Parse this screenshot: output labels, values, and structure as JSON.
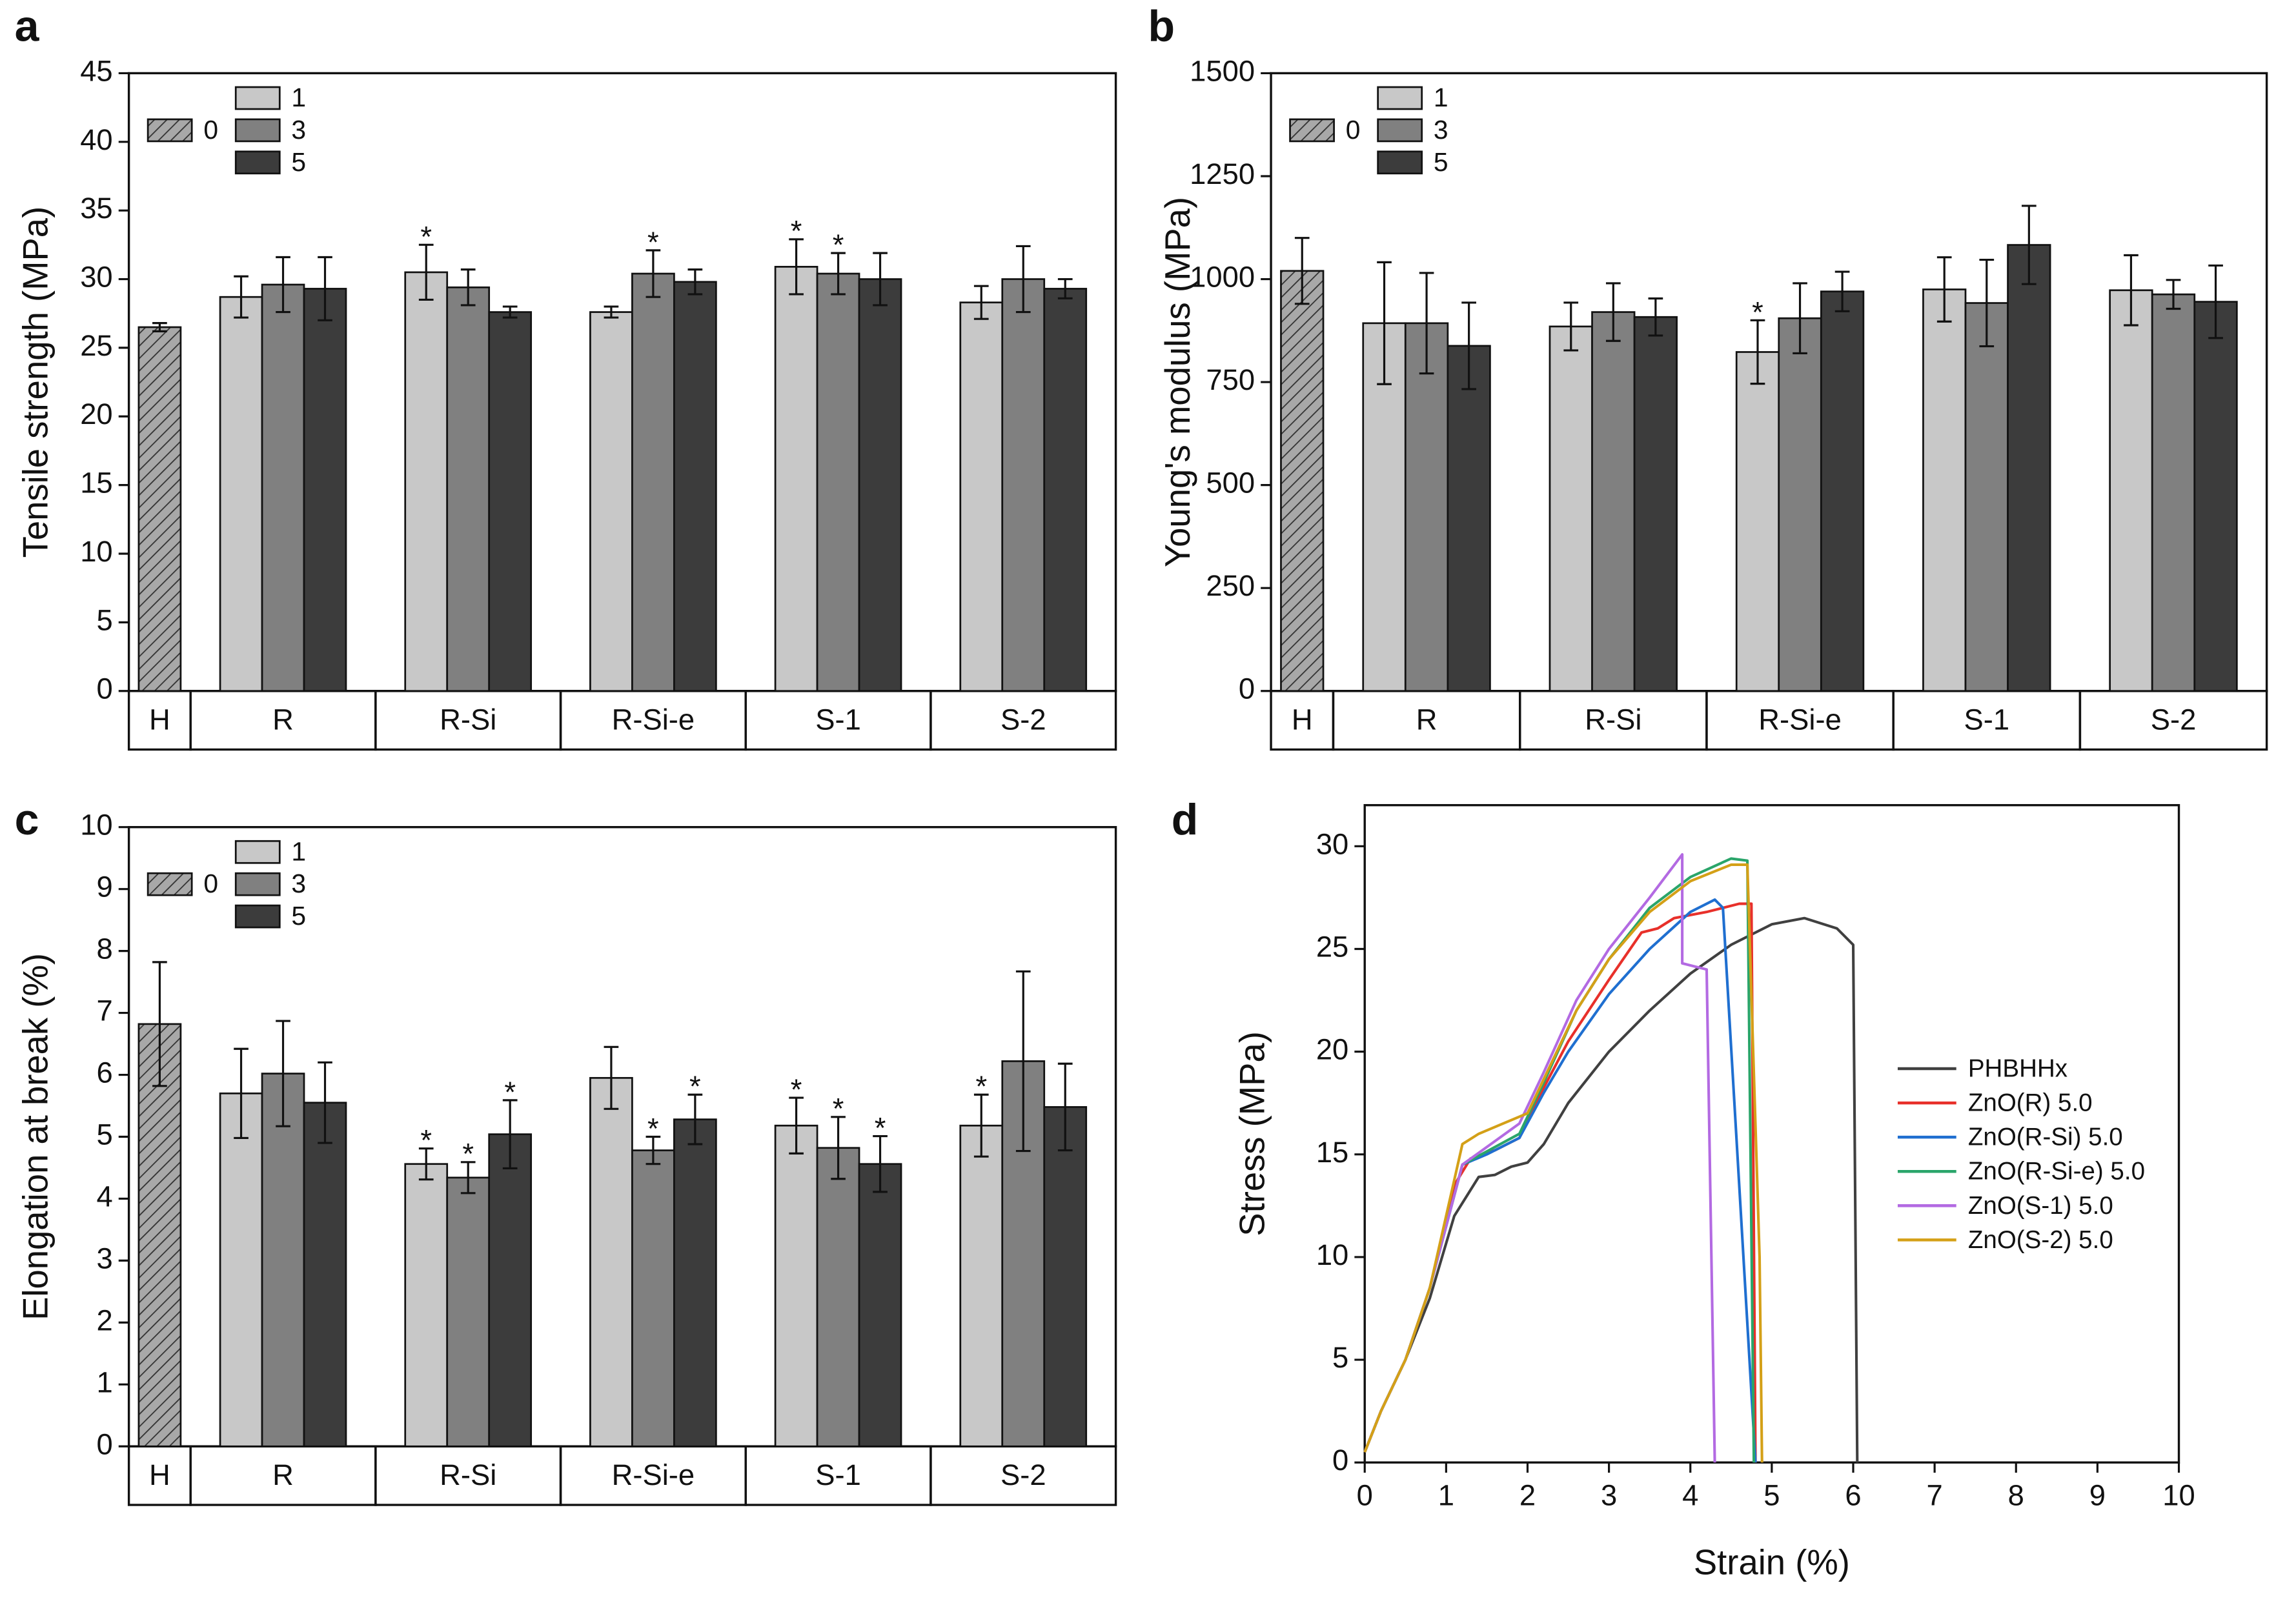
{
  "chart_data": [
    {
      "type": "bar",
      "panel": "a",
      "y_label": "Tensile strength (MPa)",
      "categories": [
        "H",
        "R",
        "R-Si",
        "R-Si-e",
        "S-1",
        "S-2"
      ],
      "ylim": [
        0,
        45
      ],
      "yticks": [
        0,
        5,
        10,
        15,
        20,
        25,
        30,
        35,
        40,
        45
      ],
      "series": [
        {
          "name": "0",
          "color": "#a8a8a8",
          "hatch": true,
          "values": [
            26.5,
            null,
            null,
            null,
            null,
            null
          ],
          "errors": [
            0.3,
            null,
            null,
            null,
            null,
            null
          ],
          "labels": [
            null,
            null,
            null,
            null,
            null,
            null
          ]
        },
        {
          "name": "1",
          "color": "#c8c8c8",
          "values": [
            null,
            28.7,
            30.5,
            27.6,
            30.9,
            28.3
          ],
          "errors": [
            null,
            1.5,
            2.0,
            0.4,
            2.0,
            1.2
          ],
          "labels": [
            null,
            null,
            "*",
            null,
            "*",
            null
          ]
        },
        {
          "name": "3",
          "color": "#808080",
          "values": [
            null,
            29.6,
            29.4,
            30.4,
            30.4,
            30.0
          ],
          "errors": [
            null,
            2.0,
            1.3,
            1.7,
            1.5,
            2.4
          ],
          "labels": [
            null,
            null,
            null,
            "*",
            "*",
            null
          ]
        },
        {
          "name": "5",
          "color": "#3c3c3c",
          "values": [
            null,
            29.3,
            27.6,
            29.8,
            30.0,
            29.3
          ],
          "errors": [
            null,
            2.3,
            0.4,
            0.9,
            1.9,
            0.7
          ],
          "labels": [
            null,
            null,
            null,
            null,
            null,
            null
          ]
        }
      ]
    },
    {
      "type": "bar",
      "panel": "b",
      "y_label": "Young's modulus (MPa)",
      "categories": [
        "H",
        "R",
        "R-Si",
        "R-Si-e",
        "S-1",
        "S-2"
      ],
      "ylim": [
        0,
        1500
      ],
      "yticks": [
        0,
        250,
        500,
        750,
        1000,
        1250,
        1500
      ],
      "series": [
        {
          "name": "0",
          "color": "#a8a8a8",
          "hatch": true,
          "values": [
            1020,
            null,
            null,
            null,
            null,
            null
          ],
          "errors": [
            80,
            null,
            null,
            null,
            null,
            null
          ],
          "labels": [
            null,
            null,
            null,
            null,
            null,
            null
          ]
        },
        {
          "name": "1",
          "color": "#c8c8c8",
          "values": [
            null,
            893,
            885,
            823,
            975,
            973
          ],
          "errors": [
            null,
            148,
            58,
            77,
            78,
            85
          ],
          "labels": [
            null,
            null,
            null,
            "*",
            null,
            null
          ]
        },
        {
          "name": "3",
          "color": "#808080",
          "values": [
            null,
            893,
            920,
            905,
            942,
            963
          ],
          "errors": [
            null,
            122,
            70,
            85,
            105,
            35
          ],
          "labels": [
            null,
            null,
            null,
            null,
            null,
            null
          ]
        },
        {
          "name": "5",
          "color": "#3c3c3c",
          "values": [
            null,
            838,
            908,
            970,
            1083,
            945
          ],
          "errors": [
            null,
            105,
            45,
            48,
            95,
            88
          ],
          "labels": [
            null,
            null,
            null,
            null,
            null,
            null
          ]
        }
      ]
    },
    {
      "type": "bar",
      "panel": "c",
      "y_label": "Elongation at break (%)",
      "categories": [
        "H",
        "R",
        "R-Si",
        "R-Si-e",
        "S-1",
        "S-2"
      ],
      "ylim": [
        0,
        10
      ],
      "yticks": [
        0,
        1,
        2,
        3,
        4,
        5,
        6,
        7,
        8,
        9,
        10
      ],
      "series": [
        {
          "name": "0",
          "color": "#a8a8a8",
          "hatch": true,
          "values": [
            6.82,
            null,
            null,
            null,
            null,
            null
          ],
          "errors": [
            1.0,
            null,
            null,
            null,
            null,
            null
          ],
          "labels": [
            null,
            null,
            null,
            null,
            null,
            null
          ]
        },
        {
          "name": "1",
          "color": "#c8c8c8",
          "values": [
            null,
            5.7,
            4.56,
            5.95,
            5.18,
            5.18
          ],
          "errors": [
            null,
            0.72,
            0.25,
            0.5,
            0.45,
            0.5
          ],
          "labels": [
            null,
            null,
            "*",
            null,
            "*",
            "*"
          ]
        },
        {
          "name": "3",
          "color": "#808080",
          "values": [
            null,
            6.02,
            4.34,
            4.78,
            4.82,
            6.22
          ],
          "errors": [
            null,
            0.85,
            0.25,
            0.22,
            0.5,
            1.45
          ],
          "labels": [
            null,
            null,
            "*",
            "*",
            "*",
            null
          ]
        },
        {
          "name": "5",
          "color": "#3c3c3c",
          "values": [
            null,
            5.55,
            5.04,
            5.28,
            4.56,
            5.48
          ],
          "errors": [
            null,
            0.65,
            0.55,
            0.4,
            0.45,
            0.7
          ],
          "labels": [
            null,
            null,
            "*",
            "*",
            "*",
            null
          ]
        }
      ]
    },
    {
      "type": "line",
      "panel": "d",
      "x_label": "Strain (%)",
      "y_label": "Stress (MPa)",
      "xlim": [
        0,
        10
      ],
      "xticks": [
        0,
        1,
        2,
        3,
        4,
        5,
        6,
        7,
        8,
        9,
        10
      ],
      "ylim": [
        0,
        32
      ],
      "yticks": [
        0,
        5,
        10,
        15,
        20,
        25,
        30
      ],
      "series": [
        {
          "name": "PHBHHx",
          "color": "#404040",
          "x": [
            0,
            0.2,
            0.5,
            0.8,
            1.1,
            1.4,
            1.6,
            1.8,
            2.0,
            2.2,
            2.5,
            3.0,
            3.5,
            4.0,
            4.5,
            5.0,
            5.4,
            5.8,
            6.0,
            6.05
          ],
          "values": [
            0.5,
            2.5,
            5,
            8,
            12,
            13.9,
            14.0,
            14.4,
            14.6,
            15.5,
            17.5,
            20,
            22,
            23.8,
            25.2,
            26.2,
            26.5,
            26,
            25.2,
            0
          ]
        },
        {
          "name": "ZnO(R) 5.0",
          "color": "#e8302a",
          "x": [
            0,
            0.2,
            0.5,
            0.8,
            1.1,
            1.3,
            1.6,
            1.9,
            2.1,
            2.5,
            3.0,
            3.4,
            3.6,
            3.8,
            4.2,
            4.6,
            4.75,
            4.8
          ],
          "values": [
            0.5,
            2.5,
            5,
            8.5,
            13.5,
            14.8,
            15.2,
            15.8,
            17.5,
            20.5,
            23.5,
            25.8,
            26,
            26.5,
            26.8,
            27.2,
            27.2,
            0
          ]
        },
        {
          "name": "ZnO(R-Si) 5.0",
          "color": "#1f6fd0",
          "x": [
            0,
            0.2,
            0.5,
            0.8,
            1.2,
            1.5,
            1.9,
            2.2,
            2.5,
            3.0,
            3.5,
            4.0,
            4.3,
            4.4,
            4.8
          ],
          "values": [
            0.5,
            2.5,
            5,
            8.5,
            14.5,
            15,
            15.8,
            18,
            20,
            22.8,
            25,
            26.8,
            27.4,
            27,
            0
          ]
        },
        {
          "name": "ZnO(R-Si-e) 5.0",
          "color": "#2aa56a",
          "x": [
            0,
            0.2,
            0.5,
            0.8,
            1.2,
            1.9,
            2.2,
            2.6,
            3.0,
            3.5,
            4.0,
            4.5,
            4.7,
            4.78
          ],
          "values": [
            0.5,
            2.5,
            5,
            8.5,
            14.5,
            16,
            18.5,
            22,
            24.5,
            27,
            28.5,
            29.4,
            29.3,
            0
          ]
        },
        {
          "name": "ZnO(S-1) 5.0",
          "color": "#b36ae2",
          "x": [
            0,
            0.2,
            0.5,
            0.8,
            1.2,
            1.9,
            2.2,
            2.6,
            3.0,
            3.5,
            3.9,
            3.9,
            4.2,
            4.3
          ],
          "values": [
            0.5,
            2.5,
            5,
            8.5,
            14.5,
            16.5,
            19,
            22.5,
            25,
            27.5,
            29.6,
            24.3,
            24.0,
            0
          ]
        },
        {
          "name": "ZnO(S-2) 5.0",
          "color": "#d4a017",
          "x": [
            0,
            0.2,
            0.5,
            0.8,
            1.2,
            1.4,
            1.7,
            2.0,
            2.3,
            2.6,
            3.0,
            3.5,
            4.0,
            4.5,
            4.7,
            4.85,
            4.88
          ],
          "values": [
            0.5,
            2.5,
            5,
            8.5,
            15.5,
            16,
            16.5,
            17,
            19.5,
            22,
            24.5,
            26.8,
            28.3,
            29.1,
            29.1,
            10,
            0
          ]
        }
      ]
    }
  ]
}
